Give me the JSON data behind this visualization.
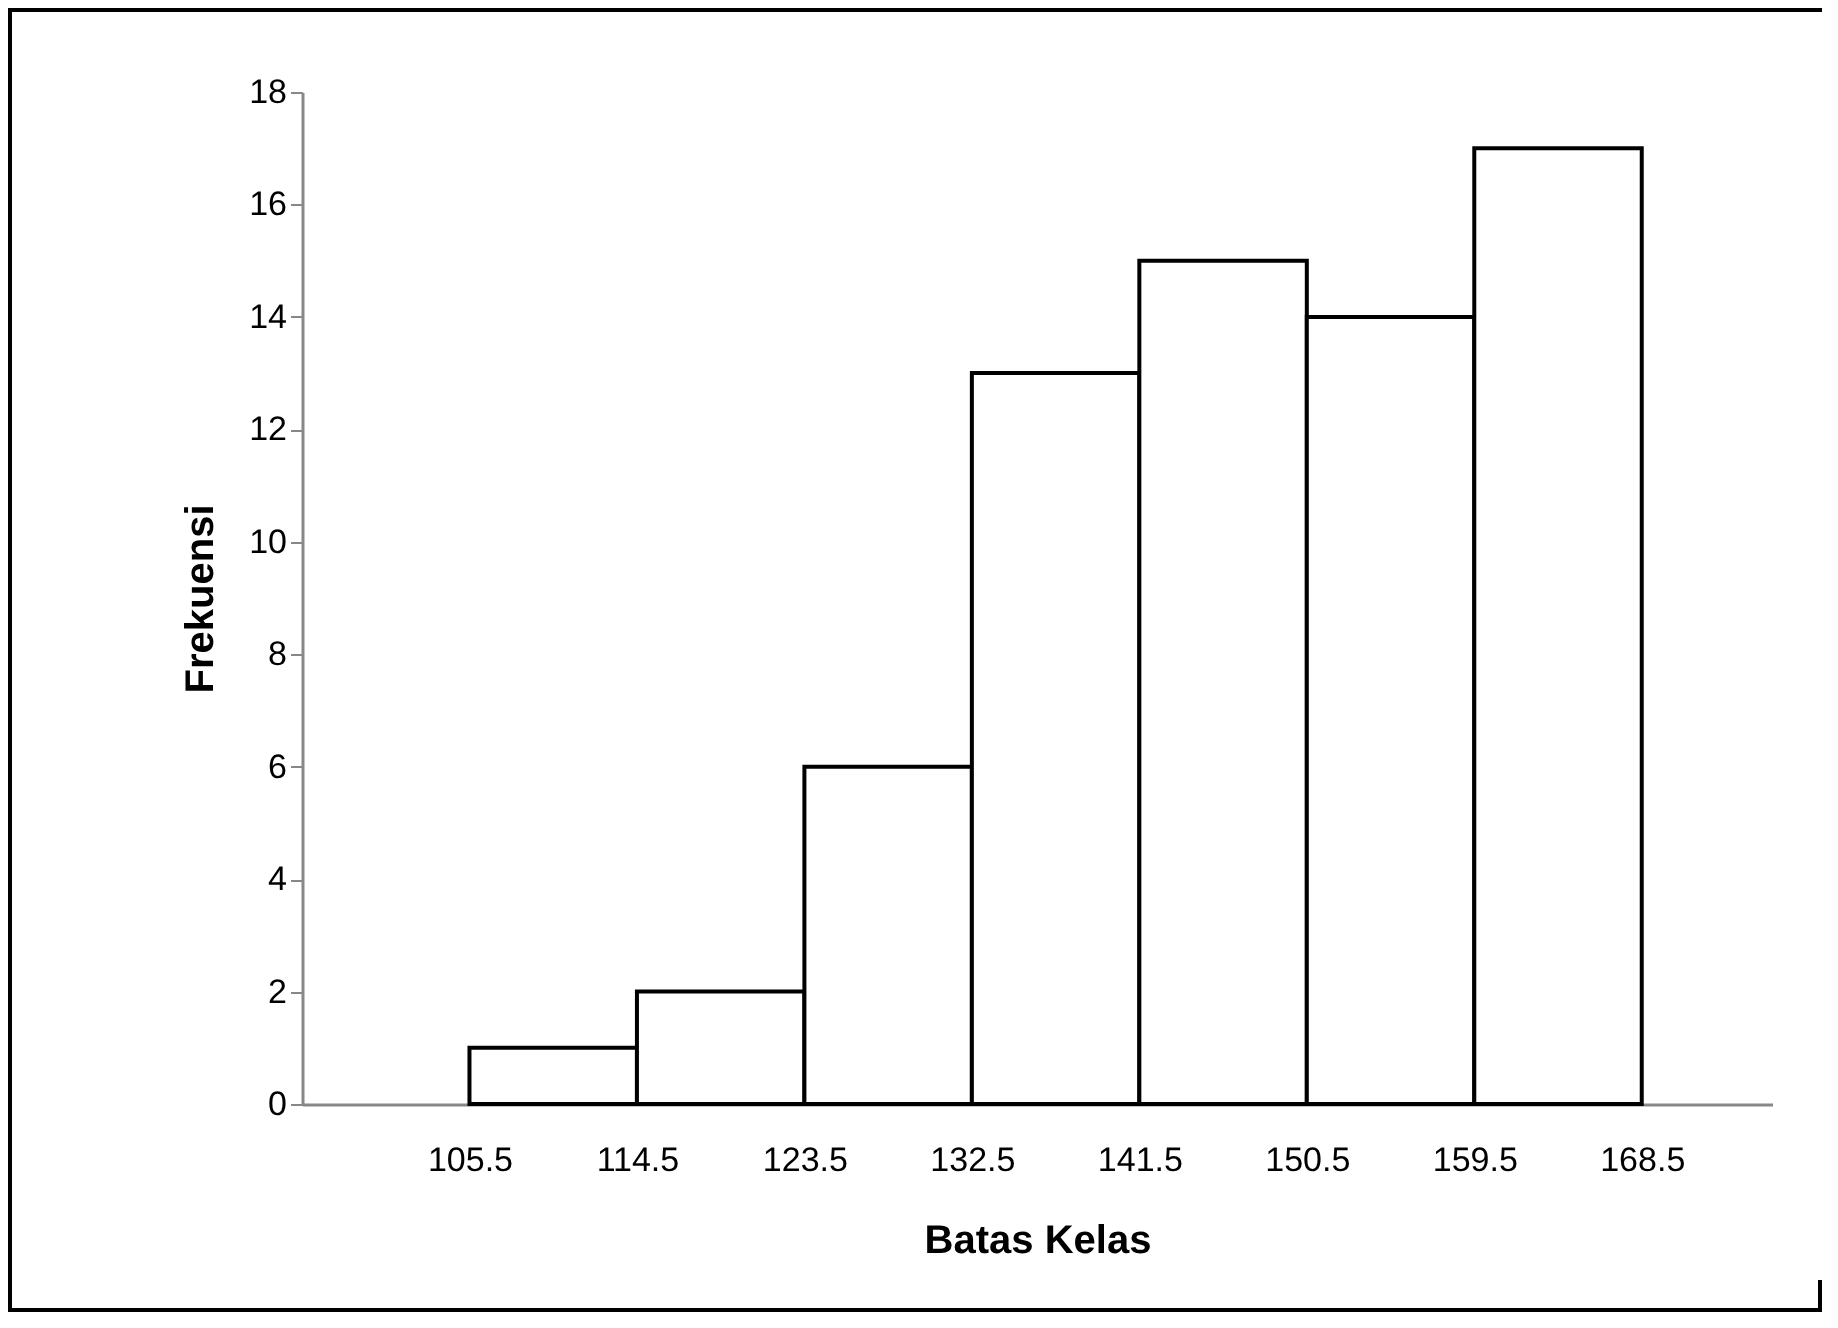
{
  "chart_data": {
    "type": "histogram",
    "xlabel": "Batas Kelas",
    "ylabel": "Frekuensi",
    "bins": [
      105.5,
      114.5,
      123.5,
      132.5,
      141.5,
      150.5,
      159.5,
      168.5
    ],
    "values": [
      1,
      2,
      6,
      13,
      15,
      14,
      17
    ],
    "color": "#ffffff",
    "xlim": [
      96.5,
      175.5
    ],
    "xticks": [
      105.5,
      114.5,
      123.5,
      132.5,
      141.5,
      150.5,
      159.5,
      168.5
    ],
    "ylim": [
      0,
      18
    ],
    "yticks": [
      0,
      2,
      4,
      6,
      8,
      10,
      12,
      14,
      16,
      18
    ],
    "grid": false
  }
}
